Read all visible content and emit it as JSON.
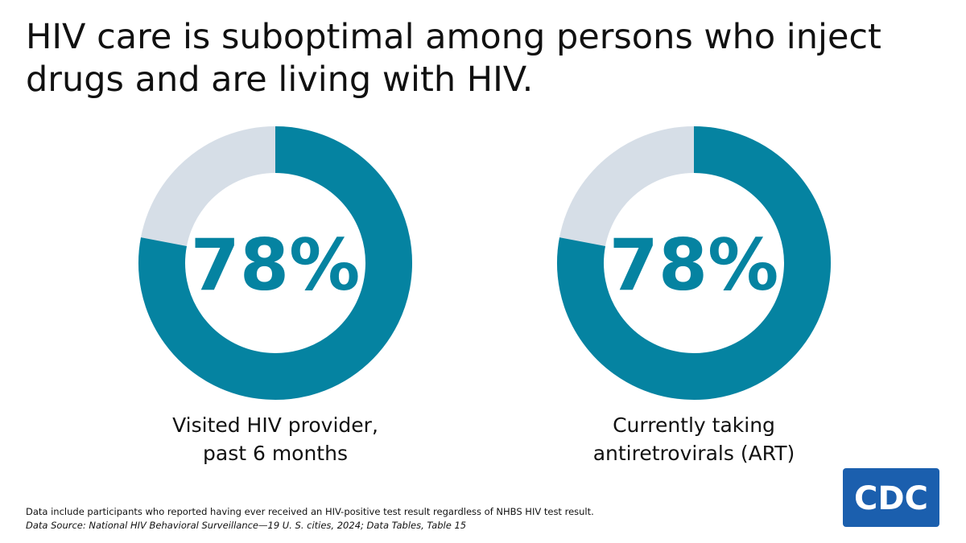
{
  "title": [
    "HIV care is suboptimal among persons who inject",
    "drugs and are living with HIV."
  ],
  "chart_data": [
    {
      "type": "donut",
      "values": [
        78
      ],
      "value_labels": [
        "78%"
      ],
      "color": "#0583a1",
      "track_color": "#d6dee7",
      "caption": [
        "Visited HIV provider,",
        "past 6 months"
      ]
    },
    {
      "type": "donut",
      "values": [
        78
      ],
      "value_labels": [
        "78%"
      ],
      "color": "#0583a1",
      "track_color": "#d6dee7",
      "caption": [
        "Currently taking",
        "antiretrovirals (ART)"
      ]
    }
  ],
  "footnotes": [
    "Data include participants who reported having ever received an HIV-positive test result regardless of NHBS HIV test result.",
    "Data Source: National HIV Behavioral Surveillance—19 U. S. cities, 2024; Data Tables, Table 15"
  ],
  "logo": "CDC"
}
